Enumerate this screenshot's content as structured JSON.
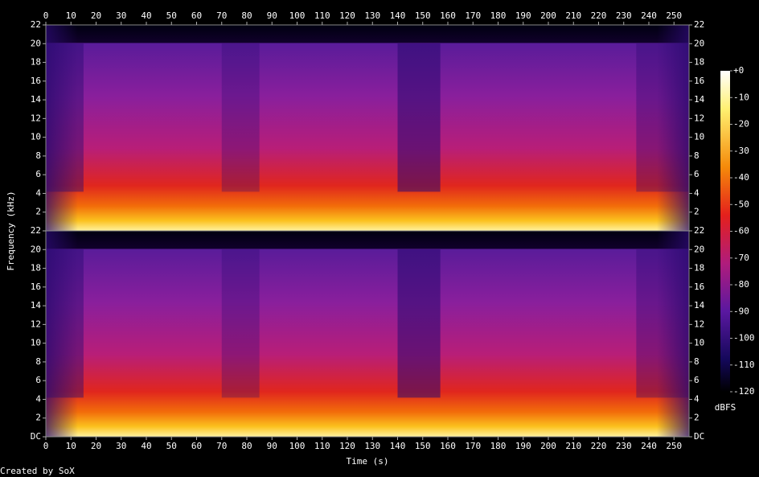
{
  "chart_data": {
    "type": "spectrogram",
    "xlabel": "Time (s)",
    "ylabel": "Frequency (kHz)",
    "xlim": [
      0,
      256
    ],
    "xticks": [
      0,
      10,
      20,
      30,
      40,
      50,
      60,
      70,
      80,
      90,
      100,
      110,
      120,
      130,
      140,
      150,
      160,
      170,
      180,
      190,
      200,
      210,
      220,
      230,
      240,
      250
    ],
    "panels": [
      {
        "ylim": [
          0,
          22
        ],
        "yticks": [
          2,
          4,
          6,
          8,
          10,
          12,
          14,
          16,
          18,
          20,
          22
        ]
      },
      {
        "ylim": [
          0,
          22
        ],
        "yticks": [
          {
            "value": 0,
            "label": "DC"
          },
          2,
          4,
          6,
          8,
          10,
          12,
          14,
          16,
          18,
          20,
          22
        ]
      }
    ],
    "colorbar": {
      "label": "dBFS",
      "lim": [
        -120,
        0
      ],
      "ticks": [
        {
          "value": 0,
          "label": "+0"
        },
        -10,
        -20,
        -30,
        -40,
        -50,
        -60,
        -70,
        -80,
        -90,
        -100,
        -110,
        -120
      ]
    }
  },
  "footer": "Created by SoX"
}
